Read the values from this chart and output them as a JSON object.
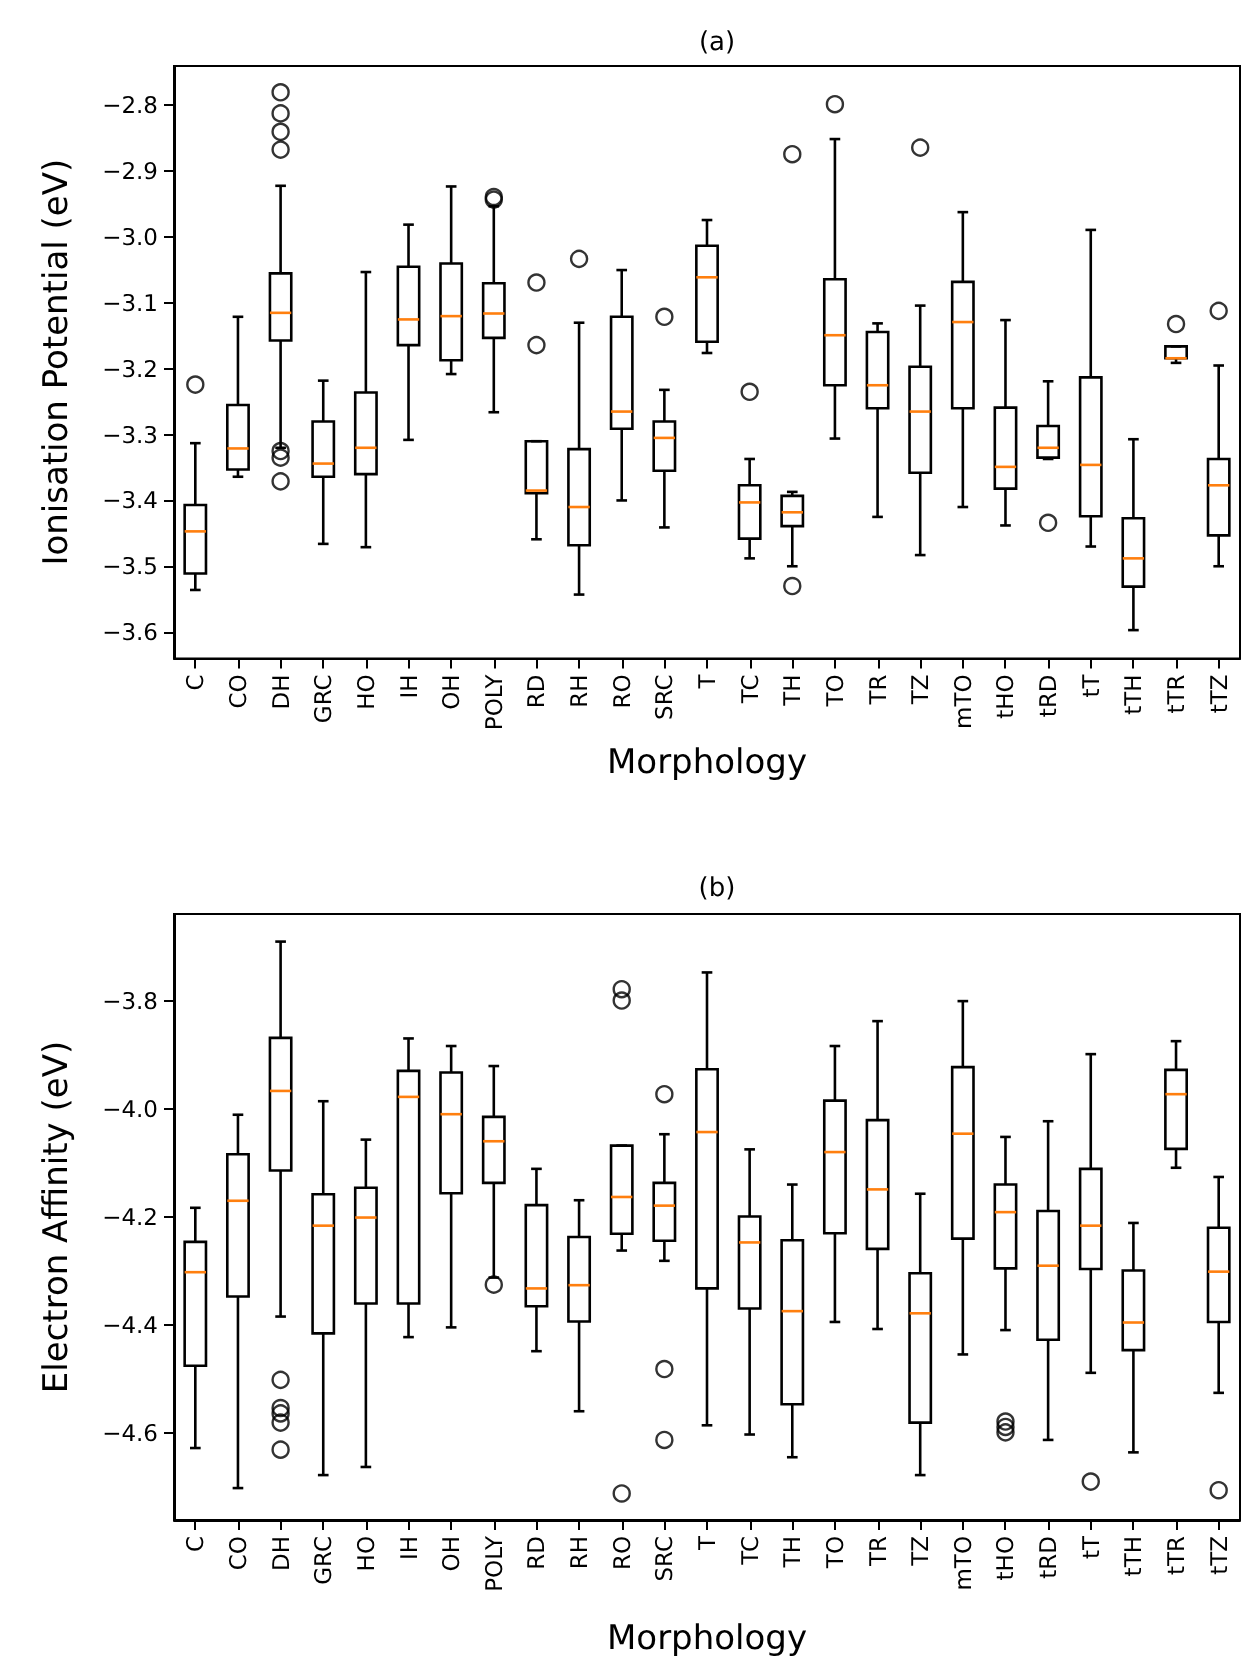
{
  "chart_data": [
    {
      "type": "box",
      "title": "(a)",
      "xlabel": "Morphology",
      "ylabel": "Ionisation Potential (eV)",
      "categories": [
        "C",
        "CO",
        "DH",
        "GRC",
        "HO",
        "IH",
        "OH",
        "POLY",
        "RD",
        "RH",
        "RO",
        "SRC",
        "T",
        "TC",
        "TH",
        "TO",
        "TR",
        "TZ",
        "mTO",
        "tHO",
        "tRD",
        "tT",
        "tTH",
        "tTR",
        "tTZ"
      ],
      "boxes": [
        {
          "low": -3.536,
          "q1": -3.511,
          "median": -3.447,
          "q3": -3.407,
          "high": -3.313,
          "outliers": [
            -3.224
          ]
        },
        {
          "low": -3.364,
          "q1": -3.353,
          "median": -3.321,
          "q3": -3.255,
          "high": -3.121
        },
        {
          "low": -3.32,
          "q1": -3.157,
          "median": -3.115,
          "q3": -3.055,
          "high": -2.922,
          "outliers": [
            -2.78,
            -2.812,
            -2.84,
            -2.867,
            -3.325,
            -3.335,
            -3.371
          ]
        },
        {
          "low": -3.466,
          "q1": -3.364,
          "median": -3.344,
          "q3": -3.28,
          "high": -3.218
        },
        {
          "low": -3.471,
          "q1": -3.36,
          "median": -3.32,
          "q3": -3.236,
          "high": -3.053
        },
        {
          "low": -3.308,
          "q1": -3.164,
          "median": -3.125,
          "q3": -3.045,
          "high": -2.981
        },
        {
          "low": -3.208,
          "q1": -3.187,
          "median": -3.12,
          "q3": -3.04,
          "high": -2.923
        },
        {
          "low": -3.266,
          "q1": -3.153,
          "median": -3.116,
          "q3": -3.07,
          "high": -2.953,
          "outliers": [
            -2.939,
            -2.943
          ]
        },
        {
          "low": -3.459,
          "q1": -3.389,
          "median": -3.385,
          "q3": -3.31,
          "high": -3.31,
          "outliers": [
            -3.069,
            -3.164
          ]
        },
        {
          "low": -3.543,
          "q1": -3.468,
          "median": -3.41,
          "q3": -3.322,
          "high": -3.13,
          "outliers": [
            -3.033
          ]
        },
        {
          "low": -3.4,
          "q1": -3.291,
          "median": -3.265,
          "q3": -3.121,
          "high": -3.05
        },
        {
          "low": -3.441,
          "q1": -3.355,
          "median": -3.305,
          "q3": -3.28,
          "high": -3.232,
          "outliers": [
            -3.121
          ]
        },
        {
          "low": -3.176,
          "q1": -3.159,
          "median": -3.061,
          "q3": -3.013,
          "high": -2.974
        },
        {
          "low": -3.488,
          "q1": -3.458,
          "median": -3.403,
          "q3": -3.377,
          "high": -3.337,
          "outliers": [
            -3.235
          ]
        },
        {
          "low": -3.5,
          "q1": -3.439,
          "median": -3.418,
          "q3": -3.393,
          "high": -3.387,
          "outliers": [
            -2.874,
            -3.53
          ]
        },
        {
          "low": -3.306,
          "q1": -3.225,
          "median": -3.149,
          "q3": -3.064,
          "high": -2.851,
          "outliers": [
            -2.798
          ]
        },
        {
          "low": -3.425,
          "q1": -3.26,
          "median": -3.225,
          "q3": -3.144,
          "high": -3.131
        },
        {
          "low": -3.483,
          "q1": -3.358,
          "median": -3.265,
          "q3": -3.197,
          "high": -3.104,
          "outliers": [
            -2.864
          ]
        },
        {
          "low": -3.41,
          "q1": -3.26,
          "median": -3.129,
          "q3": -3.068,
          "high": -2.962
        },
        {
          "low": -3.438,
          "q1": -3.382,
          "median": -3.349,
          "q3": -3.259,
          "high": -3.126
        },
        {
          "low": -3.337,
          "q1": -3.335,
          "median": -3.32,
          "q3": -3.287,
          "high": -3.219,
          "outliers": [
            -3.434
          ]
        },
        {
          "low": -3.47,
          "q1": -3.424,
          "median": -3.346,
          "q3": -3.213,
          "high": -2.989
        },
        {
          "low": -3.597,
          "q1": -3.531,
          "median": -3.488,
          "q3": -3.427,
          "high": -3.307
        },
        {
          "low": -3.191,
          "q1": -3.184,
          "median": -3.184,
          "q3": -3.166,
          "high": -3.166,
          "outliers": [
            -3.132
          ]
        },
        {
          "low": -3.5,
          "q1": -3.453,
          "median": -3.377,
          "q3": -3.337,
          "high": -3.195,
          "outliers": [
            -3.112
          ]
        }
      ],
      "ylim": [
        -3.64,
        -2.74
      ],
      "yticks": [
        {
          "value": -3.6,
          "label": "−3.6"
        },
        {
          "value": -3.5,
          "label": "−3.5"
        },
        {
          "value": -3.4,
          "label": "−3.4"
        },
        {
          "value": -3.3,
          "label": "−3.3"
        },
        {
          "value": -3.2,
          "label": "−3.2"
        },
        {
          "value": -3.1,
          "label": "−3.1"
        },
        {
          "value": -3.0,
          "label": "−3.0"
        },
        {
          "value": -2.9,
          "label": "−2.9"
        },
        {
          "value": -2.8,
          "label": "−2.8"
        }
      ]
    },
    {
      "type": "box",
      "title": "(b)",
      "xlabel": "Morphology",
      "ylabel": "Electron Affinity (eV)",
      "categories": [
        "C",
        "CO",
        "DH",
        "GRC",
        "HO",
        "IH",
        "OH",
        "POLY",
        "RD",
        "RH",
        "RO",
        "SRC",
        "T",
        "TC",
        "TH",
        "TO",
        "TR",
        "TZ",
        "mTO",
        "tHO",
        "tRD",
        "tT",
        "tTH",
        "tTR",
        "tTZ"
      ],
      "boxes": [
        {
          "low": -4.627,
          "q1": -4.475,
          "median": -4.302,
          "q3": -4.246,
          "high": -4.183
        },
        {
          "low": -4.701,
          "q1": -4.347,
          "median": -4.17,
          "q3": -4.084,
          "high": -4.011
        },
        {
          "low": -4.384,
          "q1": -4.114,
          "median": -3.967,
          "q3": -3.869,
          "high": -3.691,
          "outliers": [
            -4.501,
            -4.553,
            -4.563,
            -4.58,
            -4.63
          ]
        },
        {
          "low": -4.677,
          "q1": -4.415,
          "median": -4.216,
          "q3": -4.158,
          "high": -3.986
        },
        {
          "low": -4.662,
          "q1": -4.36,
          "median": -4.201,
          "q3": -4.146,
          "high": -4.057
        },
        {
          "low": -4.422,
          "q1": -4.36,
          "median": -3.978,
          "q3": -3.93,
          "high": -3.87
        },
        {
          "low": -4.404,
          "q1": -4.156,
          "median": -4.01,
          "q3": -3.933,
          "high": -3.884
        },
        {
          "low": -4.312,
          "q1": -4.137,
          "median": -4.06,
          "q3": -4.015,
          "high": -3.921,
          "outliers": [
            -4.325
          ]
        },
        {
          "low": -4.448,
          "q1": -4.365,
          "median": -4.332,
          "q3": -4.178,
          "high": -4.111
        },
        {
          "low": -4.559,
          "q1": -4.393,
          "median": -4.326,
          "q3": -4.237,
          "high": -4.169
        },
        {
          "low": -4.262,
          "q1": -4.231,
          "median": -4.163,
          "q3": -4.068,
          "high": -4.068,
          "outliers": [
            -3.779,
            -3.8,
            -4.711
          ]
        },
        {
          "low": -4.281,
          "q1": -4.244,
          "median": -4.179,
          "q3": -4.137,
          "high": -4.047,
          "outliers": [
            -3.973,
            -4.481,
            -4.612
          ]
        },
        {
          "low": -4.585,
          "q1": -4.332,
          "median": -4.043,
          "q3": -3.927,
          "high": -3.748
        },
        {
          "low": -4.602,
          "q1": -4.369,
          "median": -4.247,
          "q3": -4.199,
          "high": -4.075
        },
        {
          "low": -4.644,
          "q1": -4.546,
          "median": -4.374,
          "q3": -4.243,
          "high": -4.14
        },
        {
          "low": -4.394,
          "q1": -4.23,
          "median": -4.08,
          "q3": -3.985,
          "high": -3.884
        },
        {
          "low": -4.407,
          "q1": -4.259,
          "median": -4.149,
          "q3": -4.021,
          "high": -3.838
        },
        {
          "low": -4.677,
          "q1": -4.58,
          "median": -4.378,
          "q3": -4.304,
          "high": -4.157
        },
        {
          "low": -4.454,
          "q1": -4.24,
          "median": -4.046,
          "q3": -3.923,
          "high": -3.801
        },
        {
          "low": -4.409,
          "q1": -4.295,
          "median": -4.191,
          "q3": -4.14,
          "high": -4.052,
          "outliers": [
            -4.578,
            -4.588,
            -4.598
          ]
        },
        {
          "low": -4.612,
          "q1": -4.427,
          "median": -4.29,
          "q3": -4.189,
          "high": -4.023
        },
        {
          "low": -4.488,
          "q1": -4.296,
          "median": -4.216,
          "q3": -4.111,
          "high": -3.899,
          "outliers": [
            -4.689
          ]
        },
        {
          "low": -4.635,
          "q1": -4.446,
          "median": -4.395,
          "q3": -4.299,
          "high": -4.211
        },
        {
          "low": -4.109,
          "q1": -4.074,
          "median": -3.973,
          "q3": -3.928,
          "high": -3.875
        },
        {
          "low": -4.525,
          "q1": -4.394,
          "median": -4.301,
          "q3": -4.22,
          "high": -4.126,
          "outliers": [
            -4.705
          ]
        }
      ],
      "ylim": [
        -4.76,
        -3.64
      ],
      "yticks": [
        {
          "value": -4.6,
          "label": "−4.6"
        },
        {
          "value": -4.4,
          "label": "−4.4"
        },
        {
          "value": -4.2,
          "label": "−4.2"
        },
        {
          "value": -4.0,
          "label": "−4.0"
        },
        {
          "value": -3.8,
          "label": "−3.8"
        }
      ]
    }
  ]
}
